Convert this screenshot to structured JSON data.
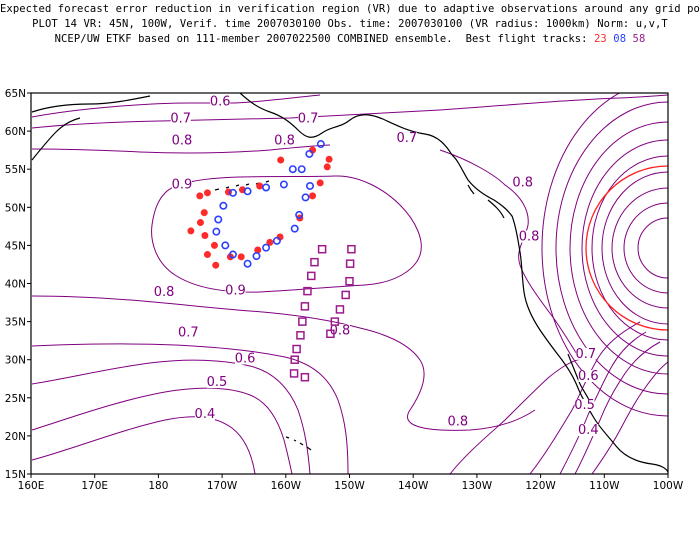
{
  "title": {
    "line1": "Expected forecast error reduction in verification region (VR) due to adaptive observations around any grid point.",
    "line2": "PLOT 14 VR: 45N, 100W, Verif. time 2007030100 Obs. time: 2007030100 (VR radius: 1000km) Norm: u,v,T",
    "line3_prefix": "NCEP/UW ETKF based on 111-member 2007022500 COMBINED ensemble.  Best flight tracks: ",
    "track_a": "23",
    "track_b": "08",
    "track_c": "58"
  },
  "axes": {
    "lat_labels": [
      "65N",
      "60N",
      "55N",
      "50N",
      "45N",
      "40N",
      "35N",
      "30N",
      "25N",
      "20N",
      "15N"
    ],
    "lon_labels": [
      "160E",
      "170E",
      "180",
      "170W",
      "160W",
      "150W",
      "140W",
      "130W",
      "120W",
      "110W",
      "100W"
    ]
  },
  "contour_labels": [
    {
      "text": "0.6",
      "lon": -170.3,
      "lat": 63.6
    },
    {
      "text": "0.7",
      "lon": -176.5,
      "lat": 61.4
    },
    {
      "text": "0.8",
      "lon": -176.3,
      "lat": 58.5
    },
    {
      "text": "0.8",
      "lon": -160.2,
      "lat": 58.5
    },
    {
      "text": "0.7",
      "lon": -156.5,
      "lat": 61.4
    },
    {
      "text": "0.7",
      "lon": -141.0,
      "lat": 58.8
    },
    {
      "text": "0.8",
      "lon": -122.8,
      "lat": 53.0
    },
    {
      "text": "0.8",
      "lon": -121.8,
      "lat": 45.9
    },
    {
      "text": "0.9",
      "lon": -176.3,
      "lat": 52.7
    },
    {
      "text": "0.9",
      "lon": -167.9,
      "lat": 38.8
    },
    {
      "text": "0.8",
      "lon": -179.1,
      "lat": 38.6
    },
    {
      "text": "0.8",
      "lon": -151.5,
      "lat": 33.6
    },
    {
      "text": "0.7",
      "lon": -175.3,
      "lat": 33.3
    },
    {
      "text": "0.6",
      "lon": -166.4,
      "lat": 29.9
    },
    {
      "text": "0.5",
      "lon": -170.8,
      "lat": 26.8
    },
    {
      "text": "0.4",
      "lon": -172.7,
      "lat": 22.6
    },
    {
      "text": "0.8",
      "lon": -133.0,
      "lat": 21.6
    },
    {
      "text": "0.7",
      "lon": -112.9,
      "lat": 30.5
    },
    {
      "text": "0.6",
      "lon": -112.5,
      "lat": 27.6
    },
    {
      "text": "0.5",
      "lon": -113.1,
      "lat": 23.8
    },
    {
      "text": "0.4",
      "lon": -112.5,
      "lat": 20.5
    }
  ],
  "flight_tracks": [
    {
      "id": "23",
      "color": "#ff2a2a",
      "marker": "filled-circle",
      "points": [
        [
          -173.5,
          51.5
        ],
        [
          -172.8,
          49.3
        ],
        [
          -173.4,
          48.0
        ],
        [
          -174.9,
          46.9
        ],
        [
          -172.7,
          46.3
        ],
        [
          -171.2,
          45.0
        ],
        [
          -172.3,
          43.8
        ],
        [
          -171.0,
          42.4
        ],
        [
          -168.7,
          43.5
        ],
        [
          -167.0,
          43.5
        ],
        [
          -164.4,
          44.4
        ],
        [
          -162.5,
          45.4
        ],
        [
          -160.9,
          46.1
        ],
        [
          -157.8,
          48.6
        ],
        [
          -155.8,
          51.5
        ],
        [
          -154.6,
          53.2
        ],
        [
          -153.5,
          55.3
        ],
        [
          -153.2,
          56.3
        ],
        [
          -155.8,
          57.5
        ],
        [
          -160.8,
          56.2
        ],
        [
          -164.1,
          52.8
        ],
        [
          -166.8,
          52.3
        ],
        [
          -169.0,
          52.0
        ],
        [
          -172.3,
          51.9
        ]
      ]
    },
    {
      "id": "08",
      "color": "#2a40ff",
      "marker": "open-circle",
      "points": [
        [
          -169.8,
          50.2
        ],
        [
          -170.6,
          48.4
        ],
        [
          -170.9,
          46.8
        ],
        [
          -169.5,
          45.0
        ],
        [
          -168.3,
          43.8
        ],
        [
          -166.0,
          42.6
        ],
        [
          -164.6,
          43.6
        ],
        [
          -163.1,
          44.7
        ],
        [
          -161.4,
          45.6
        ],
        [
          -158.6,
          47.2
        ],
        [
          -157.9,
          49.0
        ],
        [
          -156.9,
          51.3
        ],
        [
          -156.2,
          52.8
        ],
        [
          -157.5,
          55.0
        ],
        [
          -158.9,
          55.0
        ],
        [
          -160.3,
          53.0
        ],
        [
          -163.1,
          52.6
        ],
        [
          -166.0,
          52.1
        ],
        [
          -168.3,
          51.9
        ],
        [
          -156.3,
          57.0
        ],
        [
          -154.5,
          58.3
        ]
      ]
    },
    {
      "id": "58",
      "color": "#9c1a8c",
      "marker": "open-square",
      "points": [
        [
          -154.3,
          44.5
        ],
        [
          -155.5,
          42.8
        ],
        [
          -156.0,
          41.0
        ],
        [
          -156.6,
          39.0
        ],
        [
          -157.0,
          37.0
        ],
        [
          -157.4,
          35.0
        ],
        [
          -157.7,
          33.2
        ],
        [
          -158.3,
          31.4
        ],
        [
          -158.6,
          30.0
        ],
        [
          -158.7,
          28.2
        ],
        [
          -157.0,
          27.7
        ],
        [
          -149.7,
          44.5
        ],
        [
          -149.9,
          42.6
        ],
        [
          -150.0,
          40.3
        ],
        [
          -150.6,
          38.5
        ],
        [
          -151.5,
          36.6
        ],
        [
          -152.3,
          35.0
        ],
        [
          -153.0,
          33.4
        ]
      ]
    }
  ],
  "colors": {
    "contour": "#800080",
    "coast": "#000000",
    "verif_circle": "#ff2020",
    "frame": "#000000"
  },
  "verification_region": {
    "center_lat": 45,
    "center_lon": -100,
    "radius_km": 1000
  }
}
